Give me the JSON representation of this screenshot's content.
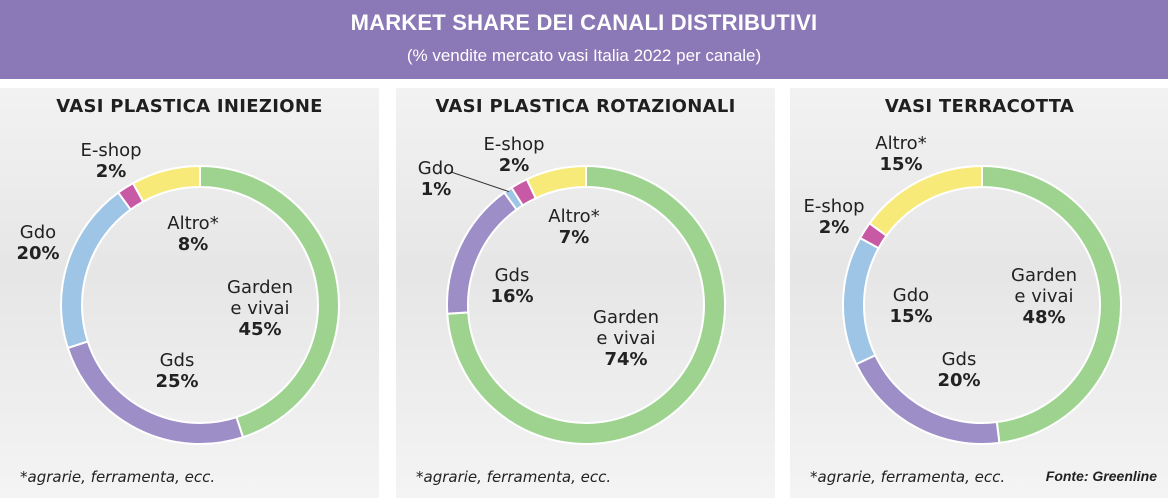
{
  "header": {
    "title": "MARKET SHARE DEI CANALI DISTRIBUTIVI",
    "subtitle": "(% vendite mercato vasi Italia 2022 per canale)"
  },
  "colors": {
    "header_bg": "#8b78b6",
    "garden": "#9ed38f",
    "gds": "#9e8ec8",
    "gdo": "#9ec4e6",
    "eshop": "#c85aa5",
    "altro": "#f8ea78"
  },
  "chart_data": [
    {
      "type": "pie",
      "title": "VASI PLASTICA INIEZIONE",
      "slices": [
        {
          "name": "Garden e vivai",
          "value": 45,
          "color": "#9ed38f"
        },
        {
          "name": "Gds",
          "value": 25,
          "color": "#9e8ec8"
        },
        {
          "name": "Gdo",
          "value": 20,
          "color": "#9ec4e6"
        },
        {
          "name": "E-shop",
          "value": 2,
          "color": "#c85aa5"
        },
        {
          "name": "Altro*",
          "value": 8,
          "color": "#f8ea78"
        }
      ],
      "labels": [
        {
          "lines": [
            "Garden",
            "e vivai"
          ],
          "pct": "45%"
        },
        {
          "lines": [
            "Gds"
          ],
          "pct": "25%"
        },
        {
          "lines": [
            "Gdo"
          ],
          "pct": "20%"
        },
        {
          "lines": [
            "E-shop"
          ],
          "pct": "2%"
        },
        {
          "lines": [
            "Altro*"
          ],
          "pct": "8%"
        }
      ],
      "footnote": "*agrarie, ferramenta, ecc."
    },
    {
      "type": "pie",
      "title": "VASI PLASTICA ROTAZIONALI",
      "slices": [
        {
          "name": "Garden e vivai",
          "value": 74,
          "color": "#9ed38f"
        },
        {
          "name": "Gds",
          "value": 16,
          "color": "#9e8ec8"
        },
        {
          "name": "Gdo",
          "value": 1,
          "color": "#9ec4e6"
        },
        {
          "name": "E-shop",
          "value": 2,
          "color": "#c85aa5"
        },
        {
          "name": "Altro*",
          "value": 7,
          "color": "#f8ea78"
        }
      ],
      "labels": [
        {
          "lines": [
            "Garden",
            "e vivai"
          ],
          "pct": "74%"
        },
        {
          "lines": [
            "Gds"
          ],
          "pct": "16%"
        },
        {
          "lines": [
            "Gdo"
          ],
          "pct": "1%"
        },
        {
          "lines": [
            "E-shop"
          ],
          "pct": "2%"
        },
        {
          "lines": [
            "Altro*"
          ],
          "pct": "7%"
        }
      ],
      "footnote": "*agrarie, ferramenta, ecc."
    },
    {
      "type": "pie",
      "title": "VASI TERRACOTTA",
      "slices": [
        {
          "name": "Garden e vivai",
          "value": 48,
          "color": "#9ed38f"
        },
        {
          "name": "Gds",
          "value": 20,
          "color": "#9e8ec8"
        },
        {
          "name": "Gdo",
          "value": 15,
          "color": "#9ec4e6"
        },
        {
          "name": "E-shop",
          "value": 2,
          "color": "#c85aa5"
        },
        {
          "name": "Altro*",
          "value": 15,
          "color": "#f8ea78"
        }
      ],
      "labels": [
        {
          "lines": [
            "Garden",
            "e vivai"
          ],
          "pct": "48%"
        },
        {
          "lines": [
            "Gds"
          ],
          "pct": "20%"
        },
        {
          "lines": [
            "Gdo"
          ],
          "pct": "15%"
        },
        {
          "lines": [
            "E-shop"
          ],
          "pct": "2%"
        },
        {
          "lines": [
            "Altro*"
          ],
          "pct": "15%"
        }
      ],
      "footnote": "*agrarie, ferramenta, ecc."
    }
  ],
  "source": "Fonte: Greenline"
}
